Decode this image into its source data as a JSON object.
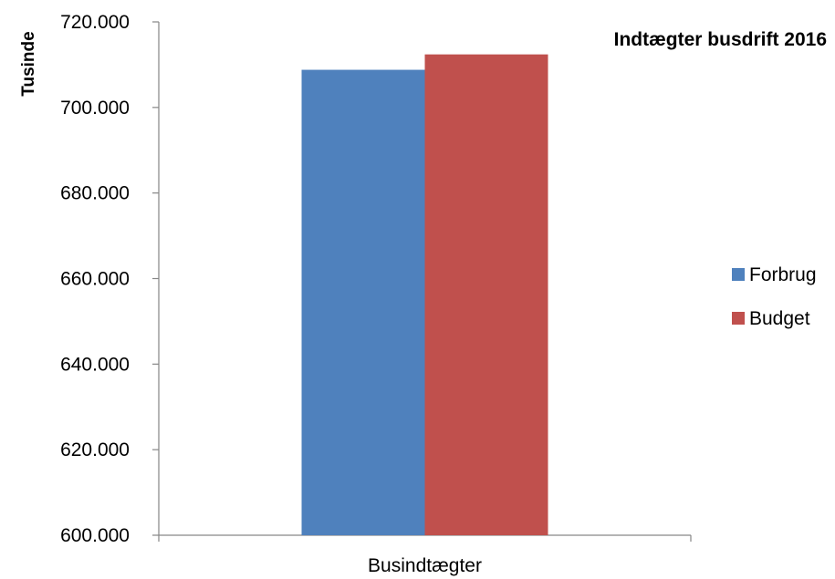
{
  "chart_data": {
    "type": "bar",
    "title": "Indtægter busdrift 2016",
    "xlabel": "",
    "ylabel": "Tusinde",
    "categories": [
      "Busindtægter"
    ],
    "series": [
      {
        "name": "Forbrug",
        "values": [
          708800
        ],
        "color": "#4F81BD"
      },
      {
        "name": "Budget",
        "values": [
          712400
        ],
        "color": "#C0504D"
      }
    ],
    "ylim": [
      600000,
      720000
    ],
    "y_tick_labels": [
      "600.000",
      "620.000",
      "640.000",
      "660.000",
      "680.000",
      "700.000",
      "720.000"
    ],
    "grid": false,
    "legend_position": "right"
  }
}
